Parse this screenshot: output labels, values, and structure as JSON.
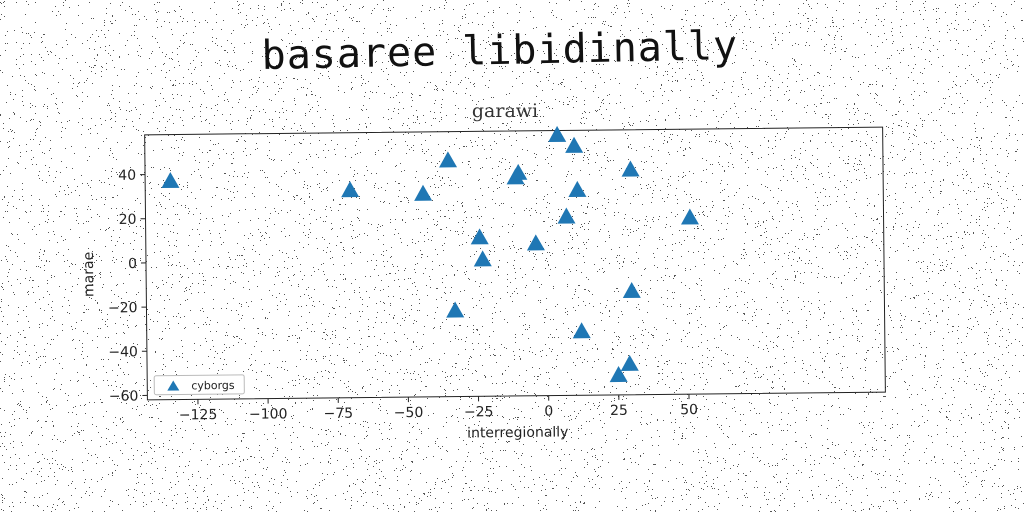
{
  "figure": {
    "main_title": "basaree libidinally"
  },
  "chart_data": {
    "type": "scatter",
    "title": "garawi",
    "xlabel": "interregionally",
    "ylabel": "marae",
    "xlim": [
      -143,
      120
    ],
    "ylim": [
      -62,
      58
    ],
    "xticks": [
      -125,
      -100,
      -75,
      -50,
      -25,
      0,
      25,
      50
    ],
    "xtick_labels": [
      "−125",
      "−100",
      "−75",
      "−50",
      "−25",
      "0",
      "25",
      "50"
    ],
    "yticks": [
      -60,
      -40,
      -20,
      0,
      20,
      40
    ],
    "ytick_labels": [
      "−60",
      "−40",
      "−20",
      "0",
      "20",
      "40"
    ],
    "legend_position": "lower-left",
    "series": [
      {
        "name": "cyborgs",
        "color": "#1f77b4",
        "marker": "triangle",
        "points": [
          {
            "x": -134,
            "y": 37
          },
          {
            "x": -70,
            "y": 32
          },
          {
            "x": -44,
            "y": 30
          },
          {
            "x": -35,
            "y": 45
          },
          {
            "x": -33,
            "y": -23
          },
          {
            "x": -24,
            "y": 10
          },
          {
            "x": -23,
            "y": 0
          },
          {
            "x": -11,
            "y": 37
          },
          {
            "x": -10,
            "y": 39
          },
          {
            "x": -4,
            "y": 7
          },
          {
            "x": 4,
            "y": 56
          },
          {
            "x": 7,
            "y": 19
          },
          {
            "x": 10,
            "y": 51
          },
          {
            "x": 11,
            "y": 31
          },
          {
            "x": 12,
            "y": -33
          },
          {
            "x": 25,
            "y": -53
          },
          {
            "x": 29,
            "y": -48
          },
          {
            "x": 30,
            "y": 40
          },
          {
            "x": 30,
            "y": -15
          },
          {
            "x": 51,
            "y": 18
          }
        ]
      }
    ]
  }
}
